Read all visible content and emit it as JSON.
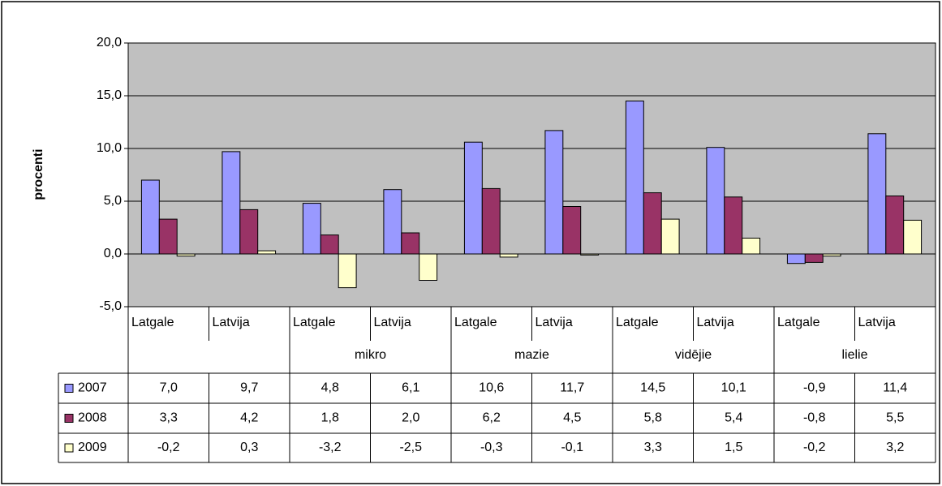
{
  "chart_data": {
    "type": "bar",
    "y_label": "procenti",
    "categories": [
      "Latgale",
      "Latvija",
      "Latgale",
      "Latvija",
      "Latgale",
      "Latvija",
      "Latgale",
      "Latvija",
      "Latgale",
      "Latvija"
    ],
    "groups": [
      null,
      "mikro",
      "mazie",
      "vidējie",
      "lielie"
    ],
    "series": [
      {
        "name": "2007",
        "color": "#9999ff",
        "values": [
          7.0,
          9.7,
          4.8,
          6.1,
          10.6,
          11.7,
          14.5,
          10.1,
          -0.9,
          11.4
        ],
        "value_labels": [
          "7,0",
          "9,7",
          "4,8",
          "6,1",
          "10,6",
          "11,7",
          "14,5",
          "10,1",
          "-0,9",
          "11,4"
        ]
      },
      {
        "name": "2008",
        "color": "#993366",
        "values": [
          3.3,
          4.2,
          1.8,
          2.0,
          6.2,
          4.5,
          5.8,
          5.4,
          -0.8,
          5.5
        ],
        "value_labels": [
          "3,3",
          "4,2",
          "1,8",
          "2,0",
          "6,2",
          "4,5",
          "5,8",
          "5,4",
          "-0,8",
          "5,5"
        ]
      },
      {
        "name": "2009",
        "color": "#ffffcc",
        "values": [
          -0.2,
          0.3,
          -3.2,
          -2.5,
          -0.3,
          -0.1,
          3.3,
          1.5,
          -0.2,
          3.2
        ],
        "value_labels": [
          "-0,2",
          "0,3",
          "-3,2",
          "-2,5",
          "-0,3",
          "-0,1",
          "3,3",
          "1,5",
          "-0,2",
          "3,2"
        ]
      }
    ],
    "ylim": [
      -5,
      20
    ],
    "yticks": [
      {
        "value": -5,
        "label": "-5,0"
      },
      {
        "value": 0,
        "label": "0,0"
      },
      {
        "value": 5,
        "label": "5,0"
      },
      {
        "value": 10,
        "label": "10,0"
      },
      {
        "value": 15,
        "label": "15,0"
      },
      {
        "value": 20,
        "label": "20,0"
      }
    ],
    "grid": true,
    "plot_background": "#c0c0c0"
  }
}
